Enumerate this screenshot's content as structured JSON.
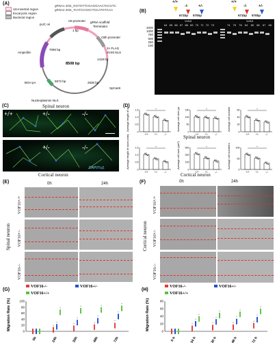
{
  "panel_a": {
    "label": "(A)",
    "legend": [
      "U6-inserted region",
      "Eucaryotic region",
      "Bacterial region"
    ],
    "grna1": "gRNA1 20nt_GGTGTTCGAGGAACTACGTC",
    "grna2": "gRNA2 20nt_TAATCCGGCTGCATGTCAA",
    "plasmid_size": "8508 bp",
    "features": [
      "pUC ori",
      "U6 promoter",
      "1 bp",
      "gRNA scaffold",
      "Terminator",
      "CBh promoter",
      "3× FLAG",
      "SV40 NLS",
      "1418 bp",
      "Ampicillin",
      "7090 bp",
      "2836 bp",
      "SpCas9",
      "5572 bp",
      "BGH pA",
      "Nucleoplasmin NLS"
    ]
  },
  "panel_b": {
    "label": "(B)",
    "genotypes_left": [
      "+/+",
      "-/-",
      "+/-"
    ],
    "genotypes_right": [
      "+/+",
      "-/-",
      "+/-"
    ],
    "bp_left": [
      "671bp",
      "570bp"
    ],
    "bp_right": [
      "671bp",
      "570bp"
    ],
    "gene_tag": "Vof16",
    "ladder": [
      "2000",
      "1000",
      "750",
      "500",
      "250",
      "100"
    ],
    "lanes_left": [
      "64",
      "65",
      "66",
      "67",
      "68",
      "69",
      "70",
      "71",
      "72",
      "73"
    ],
    "lanes_right": [
      "74",
      "75",
      "76",
      "64",
      "65",
      "66",
      "67",
      "68"
    ]
  },
  "panel_c": {
    "label": "(C)",
    "title_top": "Spinal neuron",
    "title_bottom": "Cortical neuron",
    "genos": [
      "+/+",
      "+/-",
      "-/-"
    ],
    "stain": "DAPI/Tuj1"
  },
  "panel_d": {
    "label": "(D)",
    "title_top": "Spinal neuron",
    "title_bottom": "Cortical neuron",
    "ylabels": [
      "Average length of axon (mm)",
      "Average cell size (μm²)",
      "Average cell numbers"
    ],
    "xticks": [
      "+/+",
      "+/-",
      "-/-"
    ],
    "rows": [
      {
        "bars": [
          {
            "values": [
              0.95,
              0.82,
              0.62
            ],
            "ymax": 1.2,
            "ticks": [
              "1.5",
              "1.0",
              "0.5",
              "0"
            ]
          },
          {
            "values": [
              82,
              78,
              74
            ],
            "ymax": 120,
            "ticks": [
              "150",
              "100",
              "50",
              "0"
            ]
          },
          {
            "values": [
              34,
              26,
              22
            ],
            "ymax": 50,
            "ticks": [
              "60",
              "40",
              "20",
              "0"
            ]
          }
        ]
      },
      {
        "bars": [
          {
            "values": [
              0.82,
              0.58,
              0.42
            ],
            "ymax": 1.2,
            "ticks": [
              "1.5",
              "1.0",
              "0.5",
              "0"
            ]
          },
          {
            "values": [
              300,
              220,
              160
            ],
            "ymax": 420,
            "ticks": [
              "500",
              "300",
              "100",
              "0"
            ]
          },
          {
            "values": [
              82,
              62,
              34
            ],
            "ymax": 120,
            "ticks": [
              "100",
              "50",
              "0"
            ]
          }
        ]
      }
    ]
  },
  "panel_e": {
    "label": "(E)",
    "times": [
      "0h",
      "24h"
    ],
    "rows": [
      "VOF16+/+",
      "VOF16+/-",
      "VOF16-/-"
    ],
    "side": "Spinal neuron"
  },
  "panel_f": {
    "label": "(F)",
    "times": [
      "0h",
      "24h"
    ],
    "rows": [
      "VOF16+/+",
      "VOF16+/-",
      "VOF16-/-"
    ],
    "side": "Cortical neuron"
  },
  "chart_data": [
    {
      "type": "scatter",
      "panel": "(G)",
      "ylabel": "Migration Rate (%)",
      "categories": [
        "0h",
        "24h",
        "30h",
        "48h",
        "72h"
      ],
      "ylim": [
        0,
        100
      ],
      "yticks": [
        "100",
        "80",
        "60",
        "40",
        "20",
        "0"
      ],
      "series": [
        {
          "name": "VOF16-/-",
          "color": "#e23b3b",
          "values": [
            0,
            5,
            10,
            14,
            19
          ]
        },
        {
          "name": "VOF16+/-",
          "color": "#2451c7",
          "values": [
            0,
            15,
            29,
            35,
            49
          ]
        },
        {
          "name": "VOF16+/+",
          "color": "#58c33b",
          "values": [
            0,
            63,
            68,
            71,
            76
          ]
        }
      ]
    },
    {
      "type": "scatter",
      "panel": "(H)",
      "ylabel": "Migration Rate (%)",
      "categories": [
        "0 h",
        "24 h",
        "30 h",
        "48 h",
        "72 h"
      ],
      "ylim": [
        0,
        80
      ],
      "yticks": [
        "80",
        "60",
        "40",
        "20",
        "0"
      ],
      "series": [
        {
          "name": "VOF16-/-",
          "color": "#e23b3b",
          "values": [
            0,
            8,
            10,
            11,
            15
          ]
        },
        {
          "name": "VOF16+/-",
          "color": "#2451c7",
          "values": [
            0,
            20,
            25,
            26,
            31
          ]
        },
        {
          "name": "VOF16+/+",
          "color": "#58c33b",
          "values": [
            0,
            33,
            42,
            45,
            53
          ]
        }
      ]
    }
  ]
}
